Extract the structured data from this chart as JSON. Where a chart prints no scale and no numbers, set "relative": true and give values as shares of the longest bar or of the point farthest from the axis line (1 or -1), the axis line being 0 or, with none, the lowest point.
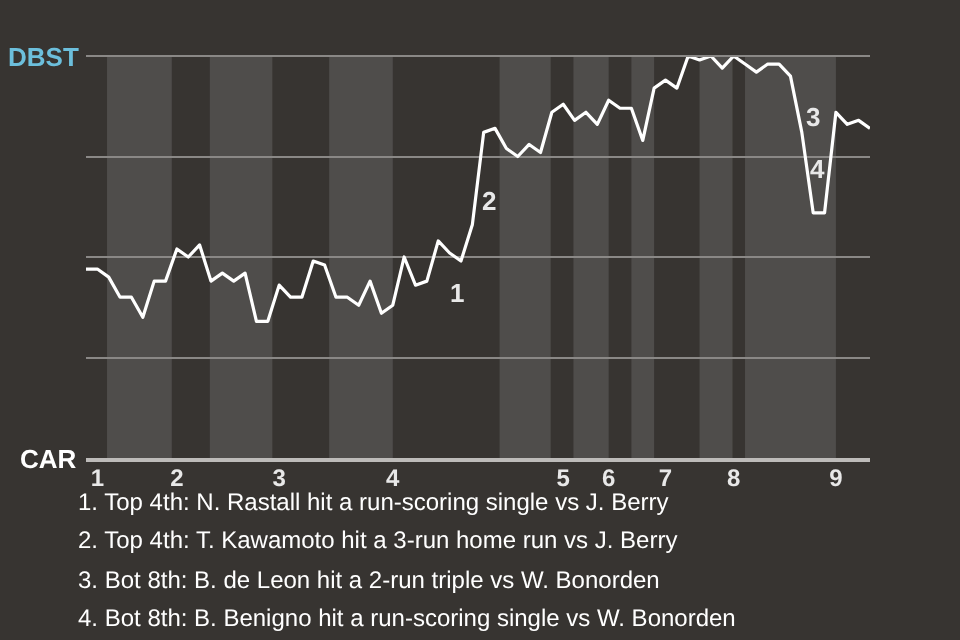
{
  "chart_data": {
    "type": "line",
    "relative": true,
    "categories": [
      null,
      "1",
      null,
      null,
      null,
      null,
      null,
      null,
      "2",
      null,
      null,
      null,
      null,
      null,
      null,
      null,
      null,
      "3",
      null,
      null,
      null,
      null,
      null,
      null,
      null,
      null,
      null,
      "4",
      null,
      null,
      null,
      null,
      null,
      null,
      null,
      null,
      null,
      null,
      null,
      null,
      null,
      null,
      "5",
      null,
      null,
      null,
      "6",
      null,
      null,
      null,
      null,
      "7",
      null,
      null,
      null,
      null,
      null,
      "8",
      null,
      null,
      null,
      null,
      null,
      null,
      null,
      null,
      "9",
      null,
      null,
      null
    ],
    "series": [
      {
        "color": "#ffffff",
        "values": [
          0.47,
          0.47,
          0.45,
          0.4,
          0.4,
          0.35,
          0.44,
          0.44,
          0.52,
          0.5,
          0.53,
          0.44,
          0.46,
          0.44,
          0.46,
          0.34,
          0.34,
          0.43,
          0.4,
          0.4,
          0.49,
          0.48,
          0.4,
          0.4,
          0.38,
          0.44,
          0.36,
          0.38,
          0.5,
          0.43,
          0.44,
          0.54,
          0.51,
          0.49,
          0.58,
          0.81,
          0.82,
          0.77,
          0.75,
          0.78,
          0.76,
          0.86,
          0.88,
          0.84,
          0.86,
          0.83,
          0.89,
          0.87,
          0.87,
          0.79,
          0.92,
          0.94,
          0.92,
          1.0,
          0.99,
          1.0,
          0.97,
          1.0,
          0.98,
          0.96,
          0.98,
          0.98,
          0.95,
          0.81,
          0.61,
          0.61,
          0.86,
          0.83,
          0.84,
          0.82
        ]
      }
    ],
    "grid": "y",
    "annotations": [
      "DBST",
      "CAR",
      "1",
      "2",
      "3",
      "4",
      "1. Top 4th: N. Rastall hit a run-scoring single vs J. Berry",
      "2. Top 4th: T. Kawamoto hit a 3-run home run vs J. Berry",
      "3. Bot 8th: B. de Leon hit a 2-run triple vs W. Bonorden",
      "4. Bot 8th: B. Benigno hit a run-scoring single vs W. Bonorden"
    ]
  }
}
